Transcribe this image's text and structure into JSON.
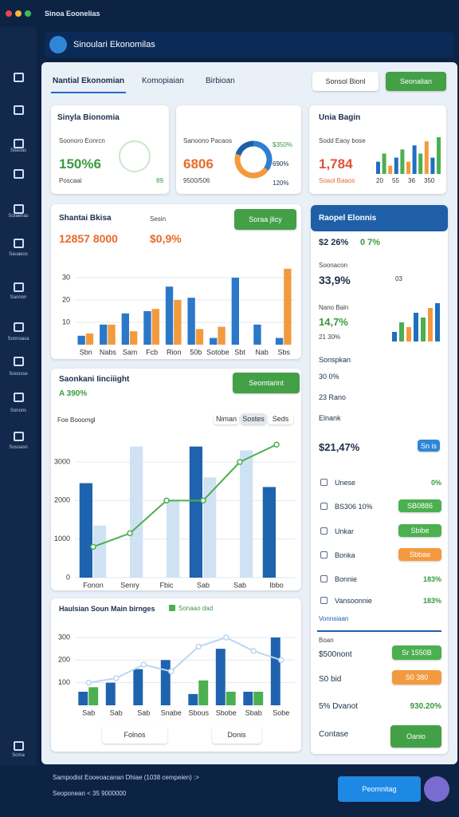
{
  "window": {
    "title": "Sinoa Eoonelias"
  },
  "sidebar": {
    "labels": [
      "Soaoas",
      "Sotaenas",
      "Sauaeos",
      "Saonon",
      "Sonnoasa",
      "Sooosse",
      "Sonons",
      "Sosoasn",
      "Soma"
    ]
  },
  "appbar": {
    "title": "Sinoulari Ekonomilas"
  },
  "tabs": [
    "Nantial Ekonomian",
    "Komopiaian",
    "Birbioan"
  ],
  "actions": {
    "select": "Sonsol Bionl",
    "primary": "Seonalian"
  },
  "card1": {
    "title": "Sinyla Bionomia",
    "label": "Soonoro Eonrcn",
    "value": "150%6",
    "footer": "Poscaai",
    "note": "89"
  },
  "card2": {
    "label": "Sanoono Pacaos",
    "value": "6806",
    "footer": "9500/506",
    "legend": [
      "$350%",
      "690%",
      "120%"
    ],
    "donut": {
      "values": [
        35,
        45,
        20
      ],
      "colors": [
        "#2f7fd0",
        "#f39a3f",
        "#1f5fa8"
      ]
    }
  },
  "card3": {
    "title": "Unia Bagin",
    "label": "Sodd Eaoy bose",
    "value": "1,784",
    "footer": "Soaol Baaos",
    "bars": {
      "values": [
        3,
        5,
        2,
        4,
        6,
        3,
        7,
        5,
        8,
        4,
        9
      ],
      "colors": [
        "#1f6fbf",
        "#4caf50",
        "#f39a3f"
      ],
      "labels": [
        "20",
        "55",
        "36",
        "350"
      ]
    }
  },
  "section2": {
    "title": "Shantai Bkisa",
    "label": "Sesin",
    "value": "12857 8000",
    "value2": "$0,9%",
    "button": "Soraa jlicy",
    "chart": {
      "type": "bar",
      "categories": [
        "Sbn",
        "Nabs",
        "Sam",
        "Fcb",
        "Rion",
        "50b",
        "Sotobe",
        "Sbt",
        "Nab",
        "Sbs"
      ],
      "ylim": [
        0,
        35
      ],
      "yticks": [
        10,
        20,
        30
      ],
      "grid": true,
      "series": [
        {
          "type": "bar",
          "color": "#2b78c8",
          "values": [
            4,
            9,
            14,
            15,
            26,
            21,
            3,
            30,
            9,
            3
          ]
        },
        {
          "type": "bar",
          "color": "#f39a3f",
          "values": [
            5,
            9,
            6,
            16,
            20,
            7,
            8,
            0,
            0,
            34
          ]
        }
      ]
    }
  },
  "section3": {
    "title": "Saonkani Iinciiight",
    "value": "A 390%",
    "button": "Seomtarint",
    "filter": "Foe Booomgl",
    "toggles": [
      "Niman",
      "Sostes",
      "Seds"
    ],
    "chart": {
      "type": "bar",
      "categories": [
        "Fonon",
        "Senry",
        "Fbic",
        "Sab",
        "Sab",
        "Ibbo"
      ],
      "ylim": [
        0,
        3600
      ],
      "yticks": [
        0,
        1000,
        2000,
        3000
      ],
      "grid": true,
      "series": [
        {
          "type": "bar",
          "color": "#1e63ad",
          "values": [
            2450,
            null,
            null,
            3400,
            null,
            2350
          ]
        },
        {
          "type": "bar",
          "color": "#cfe2f3",
          "values": [
            1350,
            3400,
            2000,
            2600,
            3300,
            null
          ]
        },
        {
          "type": "line",
          "color": "#4caf50",
          "values": [
            800,
            1150,
            2000,
            2000,
            3000,
            3450
          ]
        }
      ]
    }
  },
  "section4": {
    "title": "Haulsian Soun Main birnges",
    "legend": "Sonaao dad",
    "buttons": [
      "Folnos",
      "Donis"
    ],
    "chart": {
      "type": "bar",
      "categories": [
        "Sab",
        "Sab",
        "Sab",
        "Snabe",
        "Sbous",
        "Sbobe",
        "Sbab",
        "Sobe"
      ],
      "ylim": [
        0,
        360
      ],
      "yticks": [
        100,
        200,
        300
      ],
      "grid": true,
      "series": [
        {
          "type": "bar",
          "color": "#1e63ad",
          "values": [
            60,
            100,
            160,
            200,
            50,
            250,
            60,
            300
          ]
        },
        {
          "type": "bar",
          "color": "#4caf50",
          "values": [
            80,
            null,
            null,
            null,
            110,
            60,
            60,
            null
          ]
        },
        {
          "type": "line",
          "color": "#bcd6ef",
          "values": [
            100,
            120,
            180,
            150,
            260,
            300,
            240,
            200
          ]
        }
      ]
    }
  },
  "right": {
    "title": "Raopel Elonnis",
    "top": [
      "$2 26%",
      "0 7%"
    ],
    "label1": "Soonacon",
    "value1": "33,9%",
    "chip": "03",
    "label2": "Nano Baln",
    "value2": "14,7%",
    "sub2": "21 30%",
    "bars": {
      "values": [
        2,
        4,
        3,
        6,
        5,
        7,
        8
      ],
      "colors": [
        "#1f6fbf",
        "#4caf50",
        "#f39a3f"
      ]
    },
    "label3": "Sonspkan",
    "rows3": [
      "30 0%",
      "23 Rano",
      "Elnank"
    ],
    "big": "$21,47%",
    "pill": "Sn is",
    "rows": [
      {
        "label": "Unese",
        "value": "0%"
      },
      {
        "label": "BS306 10%",
        "button": "SB0886",
        "color": "#4caf50"
      },
      {
        "label": "Unkar",
        "button": "Sbibe",
        "color": "#4caf50"
      },
      {
        "label": "Bonka",
        "button": "Sbbae",
        "color": "#f39a3f"
      },
      {
        "label": "Bonnie",
        "value": "183%"
      },
      {
        "label": "Vansoonnie",
        "value": "183%"
      }
    ],
    "sub": "Vonnsiaan",
    "label4": "Boan",
    "rows2": [
      {
        "label": "$500nont",
        "button": "Sr 1550B",
        "color": "#4caf50"
      },
      {
        "label": "S0 bid",
        "button": "S0 380",
        "color": "#f39a3f"
      },
      {
        "label": "5% Dvanot",
        "value": "930.20%"
      },
      {
        "label": "Contase",
        "button": "Oanio",
        "color": "#43a047"
      }
    ]
  },
  "footer": {
    "line1": "Sampodist Eooeoacanan Dhiae (1038 cempeien) :>",
    "line2": "Seoponean < 35 9000000",
    "button": "Peomnitag"
  }
}
